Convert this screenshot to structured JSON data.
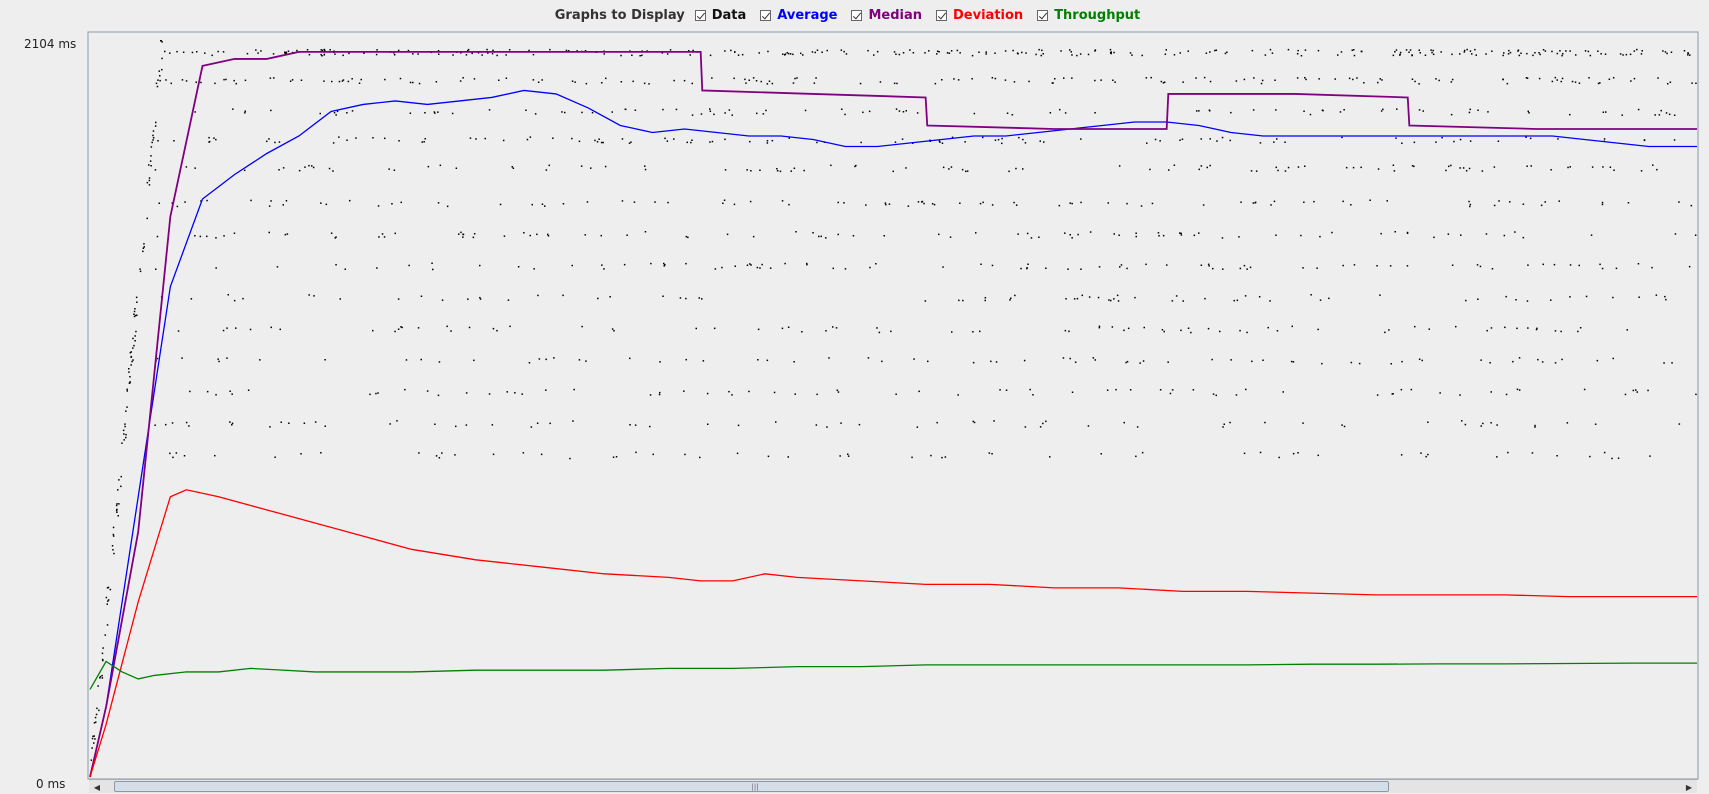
{
  "legend": {
    "title": "Graphs to Display",
    "items": [
      {
        "key": "data",
        "label": "Data",
        "color": "#000000",
        "checked": true
      },
      {
        "key": "average",
        "label": "Average",
        "color": "#0000ff",
        "checked": true
      },
      {
        "key": "median",
        "label": "Median",
        "color": "#800080",
        "checked": true
      },
      {
        "key": "deviation",
        "label": "Deviation",
        "color": "#ff0000",
        "checked": true
      },
      {
        "key": "throughput",
        "label": "Throughput",
        "color": "#008000",
        "checked": true
      }
    ]
  },
  "yaxis": {
    "max_label": "2104  ms",
    "min_label": "0  ms"
  },
  "chart_data": {
    "type": "line",
    "ylim": [
      0,
      2104
    ],
    "xlim": [
      0,
      100
    ],
    "ylabel": "ms",
    "series": [
      {
        "name": "Average",
        "color": "#0000ff",
        "points": [
          [
            0,
            0
          ],
          [
            1,
            200
          ],
          [
            3,
            800
          ],
          [
            5,
            1400
          ],
          [
            7,
            1650
          ],
          [
            9,
            1720
          ],
          [
            11,
            1780
          ],
          [
            13,
            1830
          ],
          [
            15,
            1900
          ],
          [
            17,
            1920
          ],
          [
            19,
            1930
          ],
          [
            21,
            1920
          ],
          [
            23,
            1930
          ],
          [
            25,
            1940
          ],
          [
            27,
            1960
          ],
          [
            29,
            1950
          ],
          [
            31,
            1910
          ],
          [
            33,
            1860
          ],
          [
            35,
            1840
          ],
          [
            37,
            1850
          ],
          [
            39,
            1840
          ],
          [
            41,
            1830
          ],
          [
            43,
            1830
          ],
          [
            45,
            1820
          ],
          [
            47,
            1800
          ],
          [
            49,
            1800
          ],
          [
            51,
            1810
          ],
          [
            53,
            1820
          ],
          [
            55,
            1830
          ],
          [
            57,
            1830
          ],
          [
            59,
            1840
          ],
          [
            61,
            1850
          ],
          [
            63,
            1860
          ],
          [
            65,
            1870
          ],
          [
            67,
            1870
          ],
          [
            69,
            1860
          ],
          [
            71,
            1840
          ],
          [
            73,
            1830
          ],
          [
            75,
            1830
          ],
          [
            77,
            1830
          ],
          [
            79,
            1830
          ],
          [
            81,
            1830
          ],
          [
            83,
            1830
          ],
          [
            85,
            1830
          ],
          [
            87,
            1830
          ],
          [
            89,
            1830
          ],
          [
            91,
            1830
          ],
          [
            93,
            1820
          ],
          [
            95,
            1810
          ],
          [
            97,
            1800
          ],
          [
            100,
            1800
          ]
        ]
      },
      {
        "name": "Median",
        "color": "#800080",
        "points": [
          [
            0,
            0
          ],
          [
            1,
            200
          ],
          [
            3,
            700
          ],
          [
            5,
            1600
          ],
          [
            7,
            2030
          ],
          [
            9,
            2050
          ],
          [
            11,
            2050
          ],
          [
            13,
            2070
          ],
          [
            15,
            2070
          ],
          [
            17,
            2070
          ],
          [
            19,
            2070
          ],
          [
            21,
            2070
          ],
          [
            23,
            2070
          ],
          [
            25,
            2070
          ],
          [
            27,
            2070
          ],
          [
            29,
            2070
          ],
          [
            31,
            2070
          ],
          [
            38,
            2070
          ],
          [
            38.1,
            1960
          ],
          [
            45,
            1950
          ],
          [
            52,
            1940
          ],
          [
            52.1,
            1860
          ],
          [
            60,
            1850
          ],
          [
            67,
            1850
          ],
          [
            67.1,
            1950
          ],
          [
            75,
            1950
          ],
          [
            82,
            1940
          ],
          [
            82.1,
            1860
          ],
          [
            90,
            1850
          ],
          [
            100,
            1850
          ]
        ]
      },
      {
        "name": "Deviation",
        "color": "#ff0000",
        "points": [
          [
            0,
            0
          ],
          [
            1,
            150
          ],
          [
            3,
            500
          ],
          [
            5,
            800
          ],
          [
            6,
            820
          ],
          [
            8,
            800
          ],
          [
            12,
            750
          ],
          [
            16,
            700
          ],
          [
            20,
            650
          ],
          [
            24,
            620
          ],
          [
            28,
            600
          ],
          [
            32,
            580
          ],
          [
            36,
            570
          ],
          [
            38,
            560
          ],
          [
            40,
            560
          ],
          [
            42,
            580
          ],
          [
            44,
            570
          ],
          [
            48,
            560
          ],
          [
            52,
            550
          ],
          [
            56,
            550
          ],
          [
            60,
            540
          ],
          [
            64,
            540
          ],
          [
            68,
            530
          ],
          [
            72,
            530
          ],
          [
            76,
            525
          ],
          [
            80,
            520
          ],
          [
            84,
            520
          ],
          [
            88,
            520
          ],
          [
            92,
            515
          ],
          [
            96,
            515
          ],
          [
            100,
            515
          ]
        ]
      },
      {
        "name": "Throughput",
        "color": "#008000",
        "points": [
          [
            0,
            250
          ],
          [
            1,
            330
          ],
          [
            2,
            300
          ],
          [
            3,
            280
          ],
          [
            4,
            290
          ],
          [
            6,
            300
          ],
          [
            8,
            300
          ],
          [
            10,
            310
          ],
          [
            12,
            305
          ],
          [
            14,
            300
          ],
          [
            16,
            300
          ],
          [
            20,
            300
          ],
          [
            24,
            305
          ],
          [
            28,
            305
          ],
          [
            32,
            305
          ],
          [
            36,
            310
          ],
          [
            40,
            310
          ],
          [
            44,
            315
          ],
          [
            48,
            315
          ],
          [
            52,
            320
          ],
          [
            56,
            320
          ],
          [
            60,
            320
          ],
          [
            64,
            320
          ],
          [
            68,
            320
          ],
          [
            72,
            320
          ],
          [
            76,
            322
          ],
          [
            80,
            322
          ],
          [
            84,
            323
          ],
          [
            88,
            323
          ],
          [
            92,
            324
          ],
          [
            96,
            325
          ],
          [
            100,
            325
          ]
        ]
      }
    ],
    "scatter_note": "Data"
  },
  "scrollbar": {
    "thumb_start": 0.007,
    "thumb_end": 0.815
  }
}
